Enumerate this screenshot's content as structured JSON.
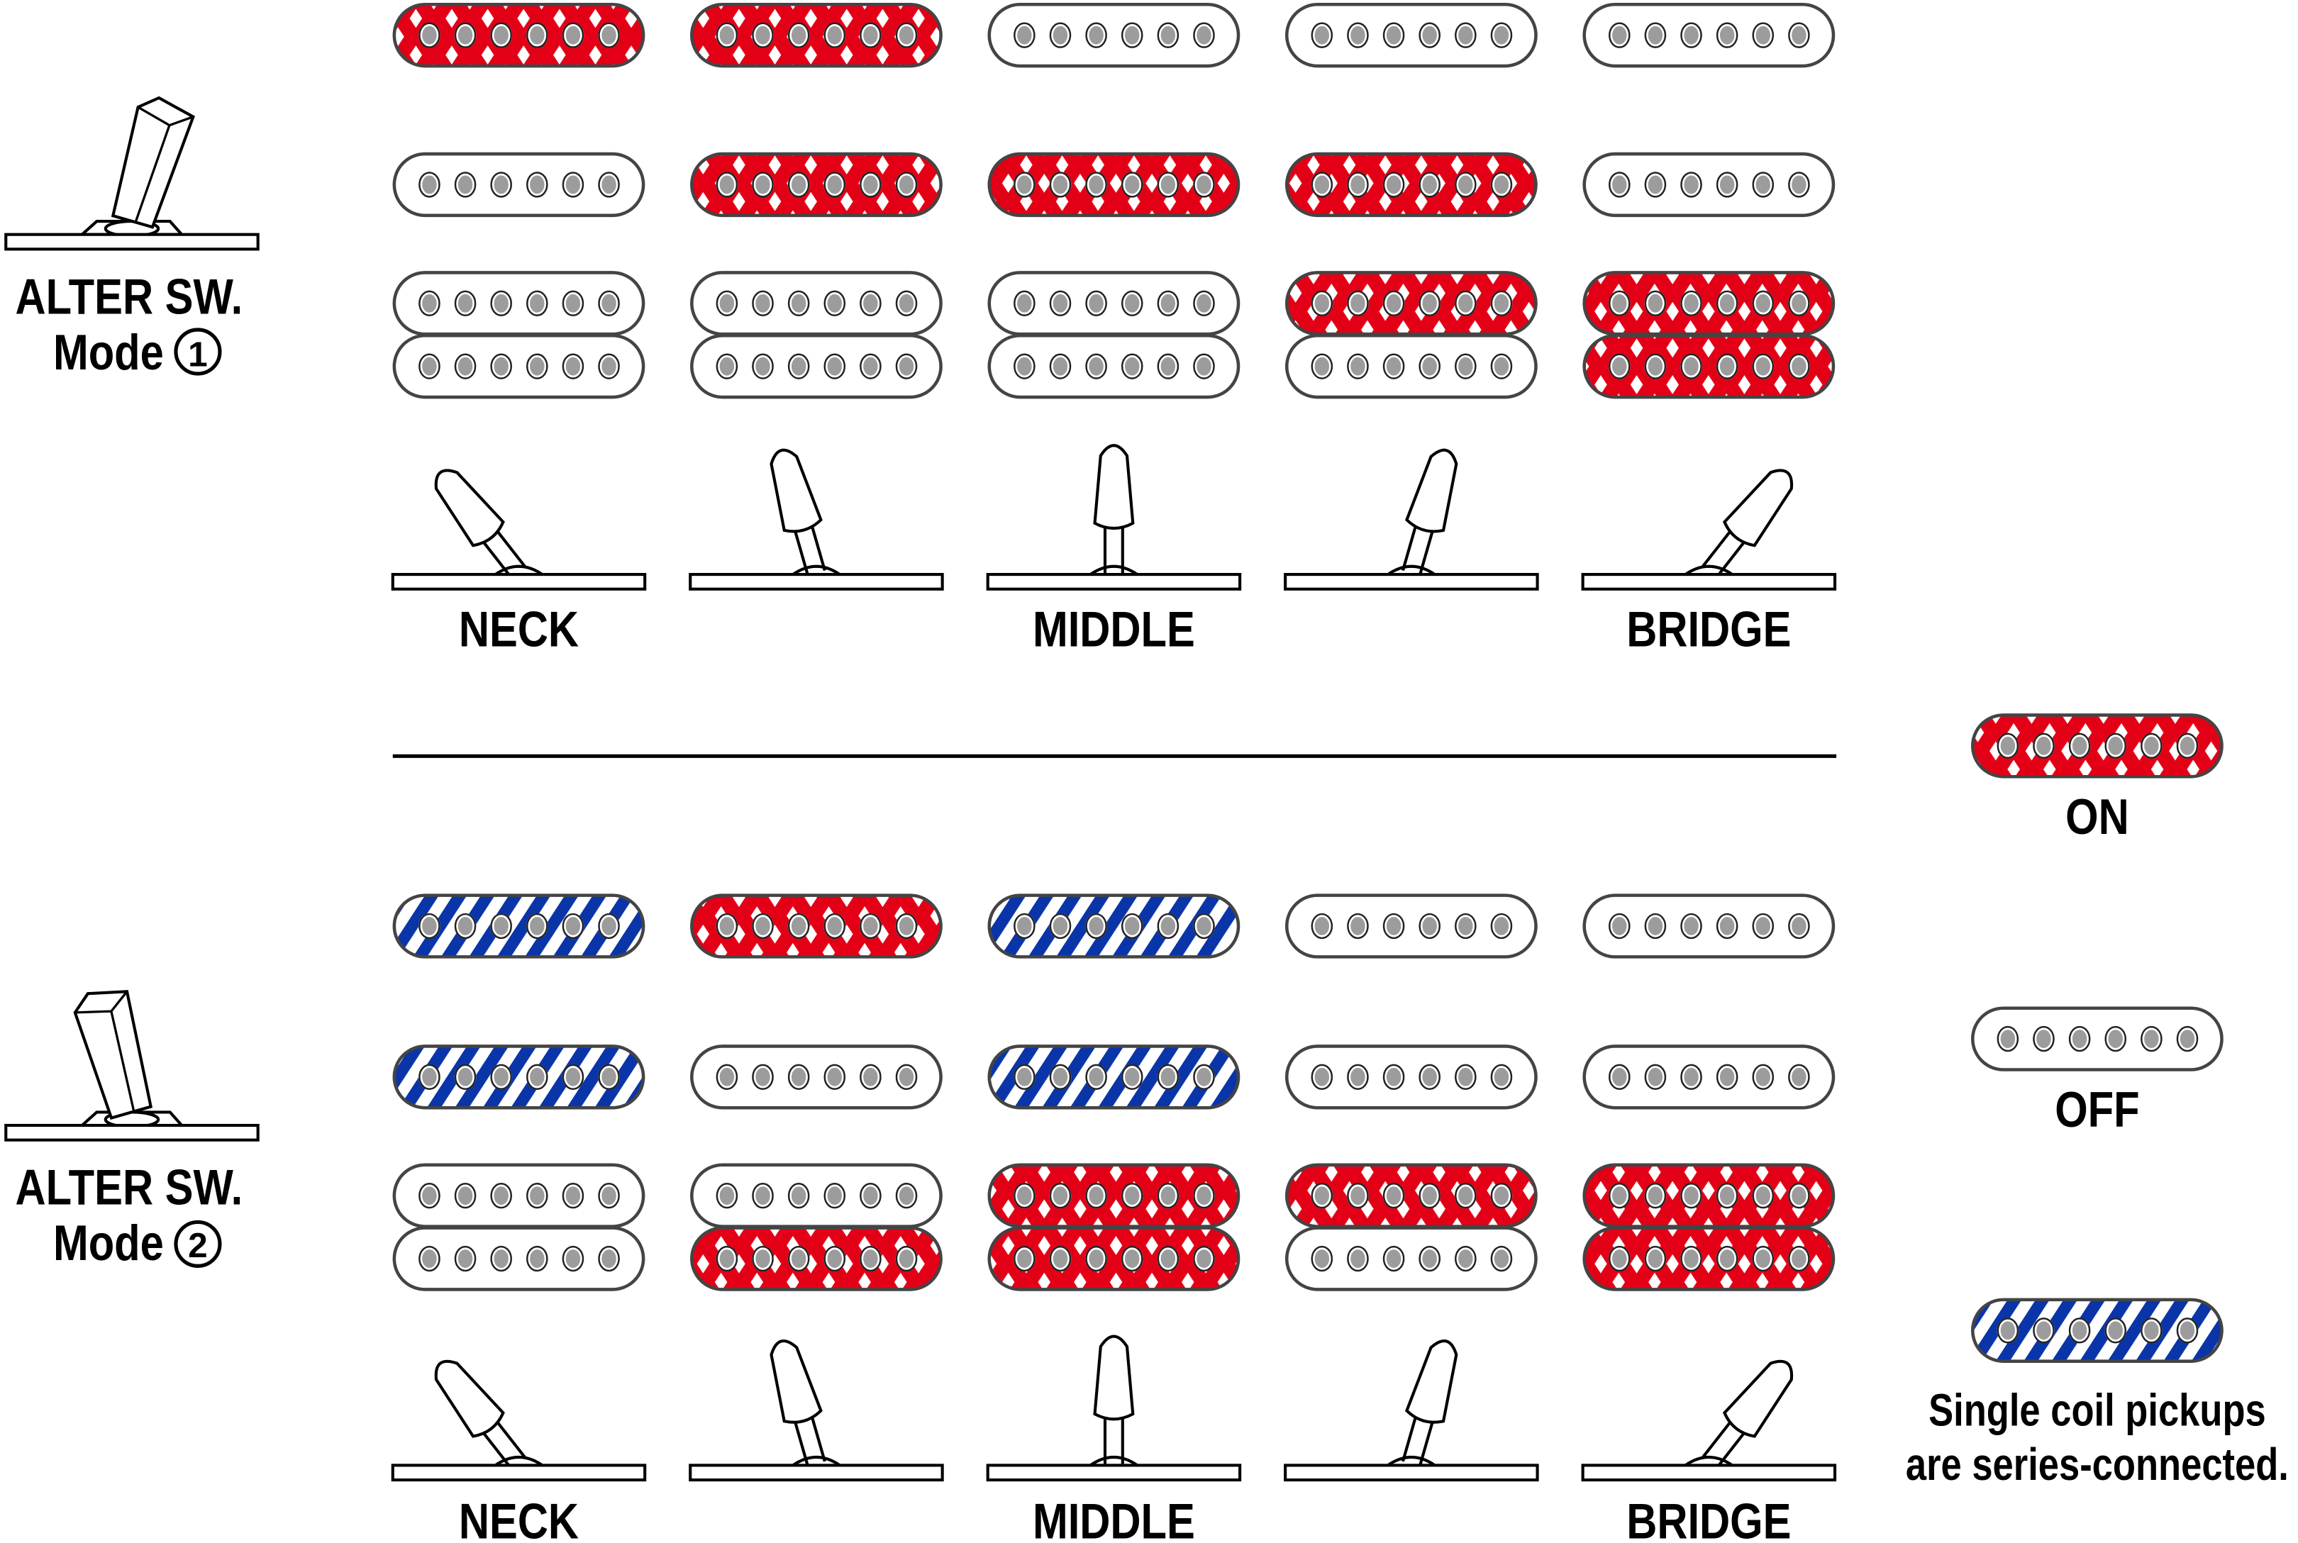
{
  "colors": {
    "on": "#e30016",
    "series": "#0a35a8",
    "pole": "#9c9c9c",
    "outline": "#444444"
  },
  "positions": [
    "NECK",
    "",
    "MIDDLE",
    "",
    "BRIDGE"
  ],
  "modes": [
    {
      "title": "ALTER SW.",
      "subtitle": "Mode",
      "number": "1",
      "lever": "right",
      "rows": {
        "neck": [
          "on",
          "on",
          "off",
          "off",
          "off"
        ],
        "middle": [
          "off",
          "on",
          "on",
          "on",
          "off"
        ],
        "bridge_top": [
          "off",
          "off",
          "off",
          "on",
          "on"
        ],
        "bridge_bottom": [
          "off",
          "off",
          "off",
          "off",
          "on"
        ]
      }
    },
    {
      "title": "ALTER SW.",
      "subtitle": "Mode",
      "number": "2",
      "lever": "left",
      "rows": {
        "neck": [
          "series",
          "on",
          "series",
          "off",
          "off"
        ],
        "middle": [
          "series",
          "off",
          "series",
          "off",
          "off"
        ],
        "bridge_top": [
          "off",
          "off",
          "on",
          "on",
          "on"
        ],
        "bridge_bottom": [
          "off",
          "on",
          "on",
          "off",
          "on"
        ]
      }
    }
  ],
  "legend": {
    "on": "ON",
    "off": "OFF",
    "series_line1": "Single coil pickups",
    "series_line2": "are series-connected."
  }
}
